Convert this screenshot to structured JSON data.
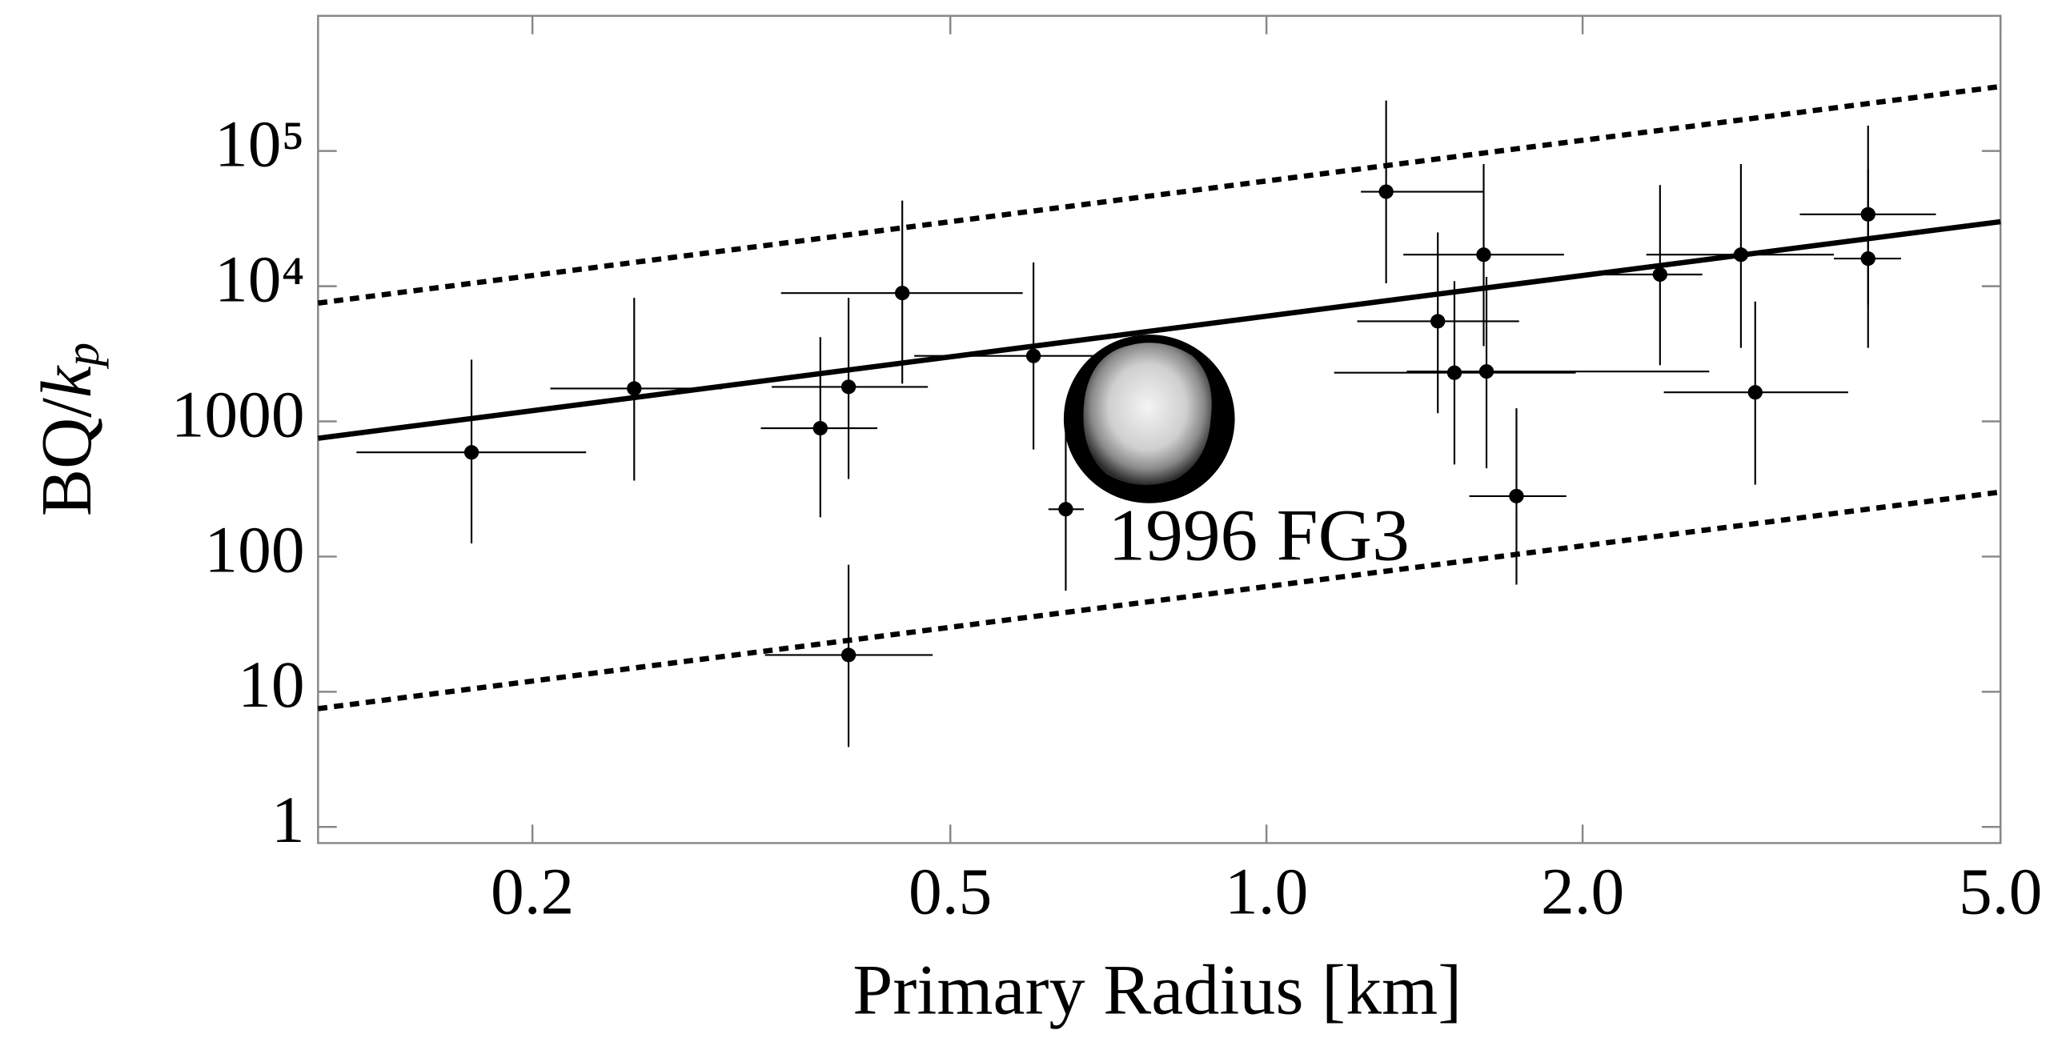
{
  "chart_data": {
    "type": "scatter",
    "x_label": "Primary Radius [km]",
    "y_label_parts": [
      "BQ/",
      "k",
      "p"
    ],
    "annotation": "1996 FG3",
    "log_x": true,
    "log_y": true,
    "xlim": [
      0.125,
      5
    ],
    "ylim": [
      0.76,
      1000000
    ],
    "xticks": [
      0.2,
      0.5,
      {
        "value": 1,
        "label": "1.0"
      },
      {
        "value": 2,
        "label": "2.0"
      },
      {
        "value": 5,
        "label": "5.0"
      }
    ],
    "yticks": [
      1,
      10,
      100,
      1000,
      {
        "value": 10000,
        "label": "10⁴"
      },
      {
        "value": 100000,
        "label": "10⁵"
      }
    ],
    "color": "#000000",
    "points": {
      "x": [
        0.175,
        0.25,
        0.376,
        0.4,
        0.4,
        0.45,
        0.6,
        0.644,
        1.3,
        1.456,
        1.51,
        1.61,
        1.62,
        1.73,
        2.37,
        2.83,
        2.92,
        3.74,
        3.74
      ],
      "values": [
        590,
        1750,
        890,
        1800,
        18.7,
        8900,
        3050,
        224,
        50000,
        5500,
        2290,
        17100,
        2340,
        280,
        12200,
        17100,
        1640,
        34000,
        16000
      ],
      "x_low": [
        0.136,
        0.208,
        0.33,
        0.338,
        0.333,
        0.345,
        0.462,
        0.62,
        1.23,
        1.22,
        1.16,
        1.35,
        1.36,
        1.56,
        2.1,
        2.3,
        2.39,
        3.22,
        3.47
      ],
      "x_high": [
        0.225,
        0.303,
        0.426,
        0.476,
        0.481,
        0.586,
        0.772,
        0.67,
        1.61,
        1.74,
        1.97,
        1.92,
        2.64,
        1.93,
        2.6,
        3.47,
        3.58,
        4.34,
        4.02
      ],
      "y_low": [
        125,
        365,
        195,
        375,
        3.9,
        1900,
        620,
        56,
        10500,
        1150,
        480,
        3600,
        450,
        62,
        2600,
        3500,
        340,
        7300,
        3500
      ],
      "y_high": [
        2860,
        8200,
        4200,
        8200,
        87,
        43000,
        15000,
        1100,
        236000,
        25000,
        10900,
        80000,
        11700,
        1250,
        56000,
        80000,
        7700,
        154000,
        73000
      ]
    },
    "fits": [
      {
        "x": [
          0.125,
          5
        ],
        "values": [
          7500,
          300000
        ],
        "style": "dotted"
      },
      {
        "x": [
          0.125,
          5
        ],
        "values": [
          750,
          30000
        ],
        "style": "solid"
      },
      {
        "x": [
          0.125,
          5
        ],
        "values": [
          7.5,
          300
        ],
        "style": "dotted"
      }
    ]
  }
}
